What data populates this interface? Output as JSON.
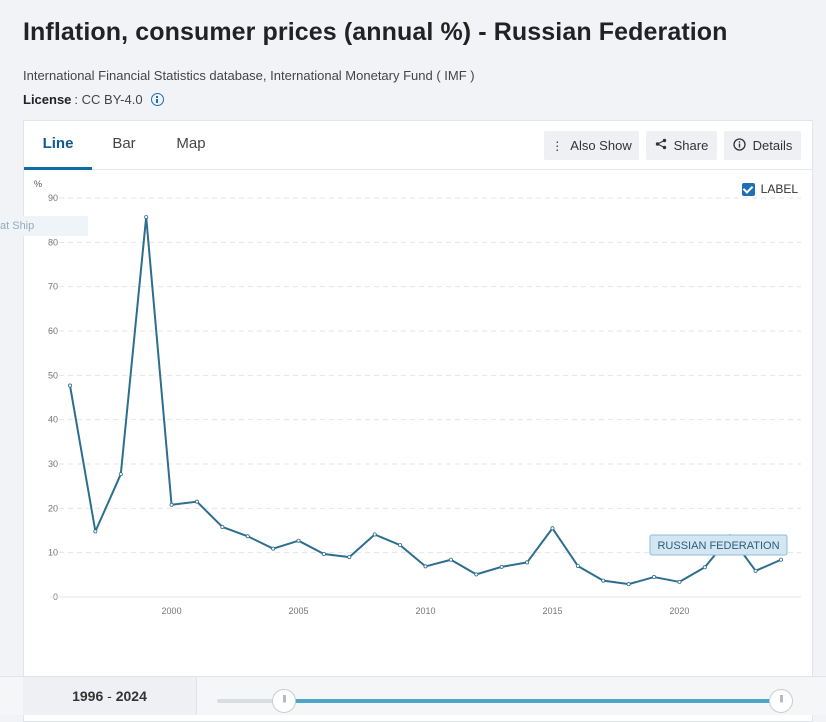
{
  "header": {
    "title": "Inflation, consumer prices (annual %) - Russian Federation",
    "source": "International Financial Statistics database, International Monetary Fund ( IMF )",
    "license_label": "License",
    "license_value": ": CC BY-4.0"
  },
  "tabs": [
    {
      "label": "Line"
    },
    {
      "label": "Bar"
    },
    {
      "label": "Map"
    }
  ],
  "actions": {
    "also_show": "Also Show",
    "share": "Share",
    "details": "Details"
  },
  "label_toggle": "LABEL",
  "ghost_text": "at Ship",
  "range_display": {
    "start": "1996",
    "sep": " - ",
    "end": "2024"
  },
  "colors": {
    "line": "#2d6e8e",
    "accent": "#0d6ea5",
    "label_bg": "#d3e6f1"
  },
  "chart_data": {
    "type": "line",
    "ylabel": "%",
    "ylim": [
      0,
      90
    ],
    "yticks": [
      0,
      10,
      20,
      30,
      40,
      50,
      60,
      70,
      80,
      90
    ],
    "xlim": [
      1996,
      2024
    ],
    "xticks": [
      2000,
      2005,
      2010,
      2015,
      2020
    ],
    "grid": true,
    "series": [
      {
        "name": "RUSSIAN FEDERATION",
        "x": [
          1996,
          1997,
          1998,
          1999,
          2000,
          2001,
          2002,
          2003,
          2004,
          2005,
          2006,
          2007,
          2008,
          2009,
          2010,
          2011,
          2012,
          2013,
          2014,
          2015,
          2016,
          2017,
          2018,
          2019,
          2020,
          2021,
          2022,
          2023,
          2024
        ],
        "values": [
          47.7,
          14.8,
          27.7,
          85.7,
          20.8,
          21.5,
          15.8,
          13.7,
          10.9,
          12.7,
          9.7,
          9.0,
          14.1,
          11.7,
          6.9,
          8.4,
          5.1,
          6.8,
          7.8,
          15.5,
          7.0,
          3.7,
          2.9,
          4.5,
          3.4,
          6.7,
          13.7,
          5.9,
          8.4
        ]
      }
    ]
  }
}
